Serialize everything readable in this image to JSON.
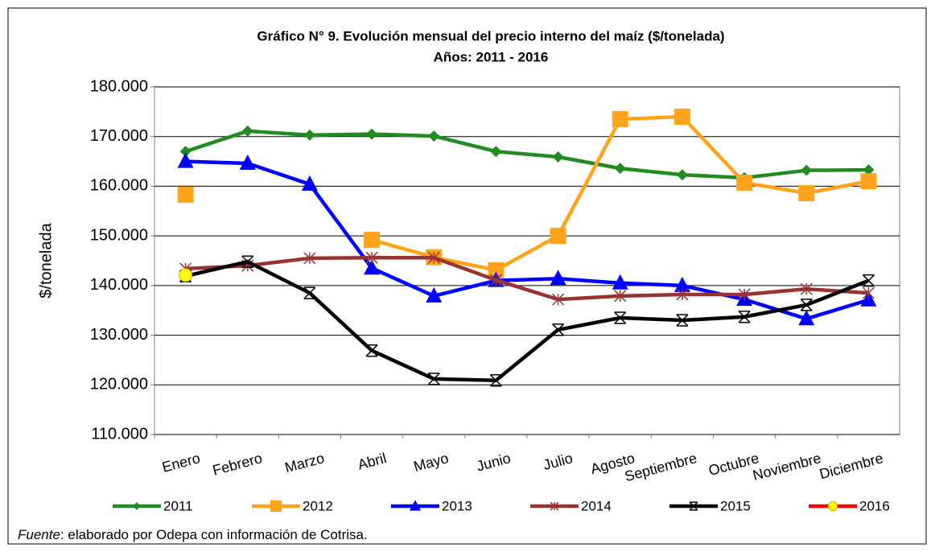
{
  "chart_data": {
    "type": "line",
    "title": "Gráfico N° 9. Evolución mensual del precio interno del maíz ($/tonelada)",
    "subtitle": "Años: 2011 - 2016",
    "y_label": "$/tonelada",
    "categories": [
      "Enero",
      "Febrero",
      "Marzo",
      "Abril",
      "Mayo",
      "Junio",
      "Julio",
      "Agosto",
      "Septiembre",
      "Octubre",
      "Noviembre",
      "Diciembre"
    ],
    "series": [
      {
        "name": "2011",
        "color": "#228b22",
        "marker": "diamond",
        "values": [
          167000,
          171100,
          170300,
          170500,
          170100,
          167000,
          165900,
          163600,
          162300,
          161700,
          163200,
          163300
        ]
      },
      {
        "name": "2012",
        "color": "#ffa31a",
        "marker": "square",
        "values": [
          158300,
          null,
          null,
          149200,
          145700,
          143100,
          150000,
          173500,
          174000,
          160700,
          158600,
          161000
        ]
      },
      {
        "name": "2013",
        "color": "#0000ff",
        "marker": "triangle",
        "values": [
          165000,
          164600,
          160400,
          143500,
          137900,
          141000,
          141400,
          140500,
          140000,
          137200,
          133300,
          137100
        ]
      },
      {
        "name": "2014",
        "color": "#993333",
        "marker": "star",
        "values": [
          143400,
          144000,
          145500,
          145600,
          145600,
          141100,
          137200,
          137900,
          138200,
          138200,
          139300,
          138500
        ]
      },
      {
        "name": "2015",
        "color": "#000000",
        "marker": "x",
        "values": [
          141900,
          144800,
          138500,
          126900,
          121200,
          120900,
          131100,
          133500,
          133000,
          133700,
          136100,
          141000
        ]
      },
      {
        "name": "2016",
        "color": "#ff0000",
        "marker": "circle",
        "values": [
          142100,
          null,
          null,
          null,
          null,
          null,
          null,
          null,
          null,
          null,
          null,
          null
        ]
      }
    ],
    "ylim": [
      110000,
      180000
    ],
    "yticks": [
      {
        "value": 110000,
        "label": "110.000"
      },
      {
        "value": 120000,
        "label": "120.000"
      },
      {
        "value": 130000,
        "label": "130.000"
      },
      {
        "value": 140000,
        "label": "140.000"
      },
      {
        "value": 150000,
        "label": "150.000"
      },
      {
        "value": 160000,
        "label": "160.000"
      },
      {
        "value": 170000,
        "label": "170.000"
      },
      {
        "value": 180000,
        "label": "180.000"
      }
    ],
    "grid": true,
    "legend": "bottom",
    "source": {
      "label": "Fuente",
      "text": ": elaborado por Odepa con información de Cotrisa."
    }
  }
}
